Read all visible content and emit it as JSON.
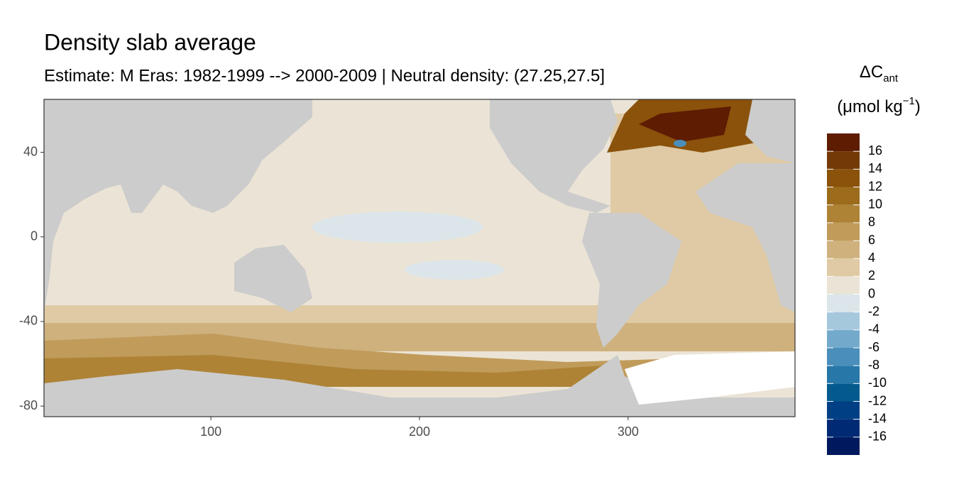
{
  "chart_data": {
    "type": "map",
    "title": "Density slab average",
    "subtitle": "Estimate: M Eras: 1982-1999 --> 2000-2009 | Neutral density: (27.25,27.5]",
    "xlim": [
      20,
      380
    ],
    "xticks": [
      100,
      200,
      300
    ],
    "ylim": [
      -85,
      65
    ],
    "yticks": [
      -80,
      -40,
      0,
      40
    ],
    "legend": {
      "title_symbol": "ΔC",
      "title_subscript": "ant",
      "unit": "(μmol kg",
      "unit_superscript": "−1",
      "unit_close": ")",
      "breaks": [
        -18,
        -16,
        -14,
        -12,
        -10,
        -8,
        -6,
        -4,
        -2,
        0,
        2,
        4,
        6,
        8,
        10,
        12,
        14,
        16,
        18
      ],
      "colors": [
        "#00195e",
        "#002a74",
        "#003f84",
        "#045a8d",
        "#2777a8",
        "#4a8fbb",
        "#73aacb",
        "#a6c8dd",
        "#dce6ea",
        "#ebe4d6",
        "#dfcaa5",
        "#cfb17e",
        "#c09b5a",
        "#ae8336",
        "#9c6c1c",
        "#8a520b",
        "#733906",
        "#5e1c02"
      ],
      "ticks": [
        -16,
        -14,
        -12,
        -10,
        -8,
        -6,
        -4,
        -2,
        0,
        2,
        4,
        6,
        8,
        10,
        12,
        14,
        16
      ]
    }
  }
}
